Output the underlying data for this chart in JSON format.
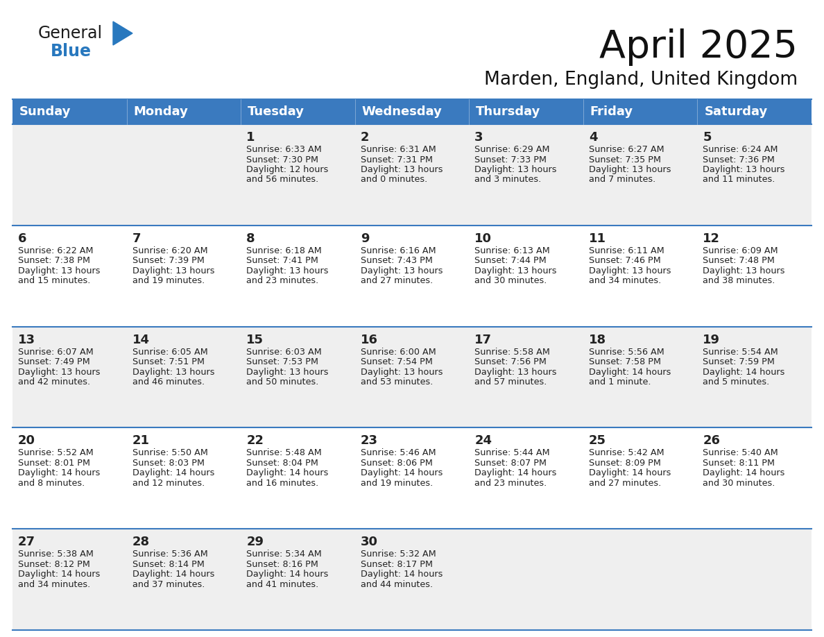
{
  "title": "April 2025",
  "subtitle": "Marden, England, United Kingdom",
  "header_color": "#3a7abf",
  "header_text_color": "#FFFFFF",
  "cell_bg_odd": "#EFEFEF",
  "cell_bg_even": "#FFFFFF",
  "border_color": "#3a7abf",
  "text_color": "#222222",
  "day_headers": [
    "Sunday",
    "Monday",
    "Tuesday",
    "Wednesday",
    "Thursday",
    "Friday",
    "Saturday"
  ],
  "weeks": [
    [
      {
        "day": "",
        "text": ""
      },
      {
        "day": "",
        "text": ""
      },
      {
        "day": "1",
        "text": "Sunrise: 6:33 AM\nSunset: 7:30 PM\nDaylight: 12 hours\nand 56 minutes."
      },
      {
        "day": "2",
        "text": "Sunrise: 6:31 AM\nSunset: 7:31 PM\nDaylight: 13 hours\nand 0 minutes."
      },
      {
        "day": "3",
        "text": "Sunrise: 6:29 AM\nSunset: 7:33 PM\nDaylight: 13 hours\nand 3 minutes."
      },
      {
        "day": "4",
        "text": "Sunrise: 6:27 AM\nSunset: 7:35 PM\nDaylight: 13 hours\nand 7 minutes."
      },
      {
        "day": "5",
        "text": "Sunrise: 6:24 AM\nSunset: 7:36 PM\nDaylight: 13 hours\nand 11 minutes."
      }
    ],
    [
      {
        "day": "6",
        "text": "Sunrise: 6:22 AM\nSunset: 7:38 PM\nDaylight: 13 hours\nand 15 minutes."
      },
      {
        "day": "7",
        "text": "Sunrise: 6:20 AM\nSunset: 7:39 PM\nDaylight: 13 hours\nand 19 minutes."
      },
      {
        "day": "8",
        "text": "Sunrise: 6:18 AM\nSunset: 7:41 PM\nDaylight: 13 hours\nand 23 minutes."
      },
      {
        "day": "9",
        "text": "Sunrise: 6:16 AM\nSunset: 7:43 PM\nDaylight: 13 hours\nand 27 minutes."
      },
      {
        "day": "10",
        "text": "Sunrise: 6:13 AM\nSunset: 7:44 PM\nDaylight: 13 hours\nand 30 minutes."
      },
      {
        "day": "11",
        "text": "Sunrise: 6:11 AM\nSunset: 7:46 PM\nDaylight: 13 hours\nand 34 minutes."
      },
      {
        "day": "12",
        "text": "Sunrise: 6:09 AM\nSunset: 7:48 PM\nDaylight: 13 hours\nand 38 minutes."
      }
    ],
    [
      {
        "day": "13",
        "text": "Sunrise: 6:07 AM\nSunset: 7:49 PM\nDaylight: 13 hours\nand 42 minutes."
      },
      {
        "day": "14",
        "text": "Sunrise: 6:05 AM\nSunset: 7:51 PM\nDaylight: 13 hours\nand 46 minutes."
      },
      {
        "day": "15",
        "text": "Sunrise: 6:03 AM\nSunset: 7:53 PM\nDaylight: 13 hours\nand 50 minutes."
      },
      {
        "day": "16",
        "text": "Sunrise: 6:00 AM\nSunset: 7:54 PM\nDaylight: 13 hours\nand 53 minutes."
      },
      {
        "day": "17",
        "text": "Sunrise: 5:58 AM\nSunset: 7:56 PM\nDaylight: 13 hours\nand 57 minutes."
      },
      {
        "day": "18",
        "text": "Sunrise: 5:56 AM\nSunset: 7:58 PM\nDaylight: 14 hours\nand 1 minute."
      },
      {
        "day": "19",
        "text": "Sunrise: 5:54 AM\nSunset: 7:59 PM\nDaylight: 14 hours\nand 5 minutes."
      }
    ],
    [
      {
        "day": "20",
        "text": "Sunrise: 5:52 AM\nSunset: 8:01 PM\nDaylight: 14 hours\nand 8 minutes."
      },
      {
        "day": "21",
        "text": "Sunrise: 5:50 AM\nSunset: 8:03 PM\nDaylight: 14 hours\nand 12 minutes."
      },
      {
        "day": "22",
        "text": "Sunrise: 5:48 AM\nSunset: 8:04 PM\nDaylight: 14 hours\nand 16 minutes."
      },
      {
        "day": "23",
        "text": "Sunrise: 5:46 AM\nSunset: 8:06 PM\nDaylight: 14 hours\nand 19 minutes."
      },
      {
        "day": "24",
        "text": "Sunrise: 5:44 AM\nSunset: 8:07 PM\nDaylight: 14 hours\nand 23 minutes."
      },
      {
        "day": "25",
        "text": "Sunrise: 5:42 AM\nSunset: 8:09 PM\nDaylight: 14 hours\nand 27 minutes."
      },
      {
        "day": "26",
        "text": "Sunrise: 5:40 AM\nSunset: 8:11 PM\nDaylight: 14 hours\nand 30 minutes."
      }
    ],
    [
      {
        "day": "27",
        "text": "Sunrise: 5:38 AM\nSunset: 8:12 PM\nDaylight: 14 hours\nand 34 minutes."
      },
      {
        "day": "28",
        "text": "Sunrise: 5:36 AM\nSunset: 8:14 PM\nDaylight: 14 hours\nand 37 minutes."
      },
      {
        "day": "29",
        "text": "Sunrise: 5:34 AM\nSunset: 8:16 PM\nDaylight: 14 hours\nand 41 minutes."
      },
      {
        "day": "30",
        "text": "Sunrise: 5:32 AM\nSunset: 8:17 PM\nDaylight: 14 hours\nand 44 minutes."
      },
      {
        "day": "",
        "text": ""
      },
      {
        "day": "",
        "text": ""
      },
      {
        "day": "",
        "text": ""
      }
    ]
  ],
  "logo_general_color": "#1a1a1a",
  "logo_blue_color": "#2878be",
  "figsize": [
    11.88,
    9.18
  ],
  "dpi": 100
}
